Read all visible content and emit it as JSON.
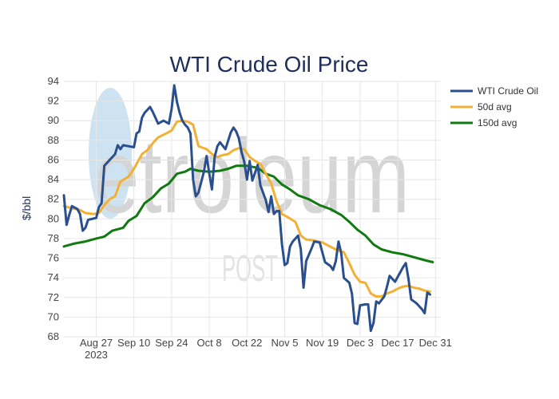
{
  "chart_data": {
    "type": "line",
    "title": "WTI Crude Oil Price",
    "ylabel": "$/bbl",
    "xlabel": "",
    "ylim": [
      68,
      94
    ],
    "yticks": [
      68,
      70,
      72,
      74,
      76,
      78,
      80,
      82,
      84,
      86,
      88,
      90,
      92,
      94
    ],
    "xlim": [
      "2023-08-15",
      "2024-01-02"
    ],
    "xticks": [
      {
        "date": "2023-08-27",
        "label": "Aug 27",
        "sublabel": "2023"
      },
      {
        "date": "2023-09-10",
        "label": "Sep 10",
        "sublabel": ""
      },
      {
        "date": "2023-09-24",
        "label": "Sep 24",
        "sublabel": ""
      },
      {
        "date": "2023-10-08",
        "label": "Oct 8",
        "sublabel": ""
      },
      {
        "date": "2023-10-22",
        "label": "Oct 22",
        "sublabel": ""
      },
      {
        "date": "2023-11-05",
        "label": "Nov 5",
        "sublabel": ""
      },
      {
        "date": "2023-11-19",
        "label": "Nov 19",
        "sublabel": ""
      },
      {
        "date": "2023-12-03",
        "label": "Dec 3",
        "sublabel": ""
      },
      {
        "date": "2023-12-17",
        "label": "Dec 17",
        "sublabel": ""
      },
      {
        "date": "2023-12-31",
        "label": "Dec 31",
        "sublabel": ""
      }
    ],
    "grid": true,
    "legend_position": "top-right",
    "series": [
      {
        "name": "WTI Crude Oil",
        "color": "#2a4f8f",
        "points": [
          [
            "2023-08-15",
            82.4
          ],
          [
            "2023-08-16",
            79.4
          ],
          [
            "2023-08-17",
            80.4
          ],
          [
            "2023-08-18",
            81.3
          ],
          [
            "2023-08-20",
            81.0
          ],
          [
            "2023-08-21",
            80.5
          ],
          [
            "2023-08-22",
            78.8
          ],
          [
            "2023-08-23",
            79.1
          ],
          [
            "2023-08-24",
            79.9
          ],
          [
            "2023-08-27",
            80.1
          ],
          [
            "2023-08-28",
            81.2
          ],
          [
            "2023-08-29",
            81.6
          ],
          [
            "2023-08-30",
            85.4
          ],
          [
            "2023-09-01",
            86.0
          ],
          [
            "2023-09-03",
            86.6
          ],
          [
            "2023-09-04",
            87.5
          ],
          [
            "2023-09-05",
            87.1
          ],
          [
            "2023-09-06",
            87.5
          ],
          [
            "2023-09-08",
            87.4
          ],
          [
            "2023-09-10",
            87.3
          ],
          [
            "2023-09-11",
            88.7
          ],
          [
            "2023-09-12",
            88.9
          ],
          [
            "2023-09-13",
            90.3
          ],
          [
            "2023-09-14",
            90.8
          ],
          [
            "2023-09-16",
            91.4
          ],
          [
            "2023-09-17",
            90.9
          ],
          [
            "2023-09-19",
            89.7
          ],
          [
            "2023-09-21",
            90.0
          ],
          [
            "2023-09-23",
            89.7
          ],
          [
            "2023-09-24",
            91.2
          ],
          [
            "2023-09-25",
            93.6
          ],
          [
            "2023-09-26",
            91.9
          ],
          [
            "2023-09-27",
            90.8
          ],
          [
            "2023-09-28",
            90.0
          ],
          [
            "2023-09-29",
            89.6
          ],
          [
            "2023-09-30",
            89.3
          ],
          [
            "2023-10-01",
            88.7
          ],
          [
            "2023-10-02",
            84.0
          ],
          [
            "2023-10-03",
            82.3
          ],
          [
            "2023-10-04",
            82.7
          ],
          [
            "2023-10-06",
            84.8
          ],
          [
            "2023-10-07",
            86.4
          ],
          [
            "2023-10-08",
            84.6
          ],
          [
            "2023-10-09",
            83.0
          ],
          [
            "2023-10-10",
            86.3
          ],
          [
            "2023-10-11",
            87.4
          ],
          [
            "2023-10-12",
            87.8
          ],
          [
            "2023-10-14",
            87.1
          ],
          [
            "2023-10-16",
            88.8
          ],
          [
            "2023-10-17",
            89.3
          ],
          [
            "2023-10-18",
            88.9
          ],
          [
            "2023-10-19",
            88.2
          ],
          [
            "2023-10-20",
            86.8
          ],
          [
            "2023-10-21",
            85.8
          ],
          [
            "2023-10-22",
            84.0
          ],
          [
            "2023-10-23",
            85.9
          ],
          [
            "2023-10-24",
            83.9
          ],
          [
            "2023-10-26",
            85.5
          ],
          [
            "2023-10-27",
            83.4
          ],
          [
            "2023-10-29",
            81.9
          ],
          [
            "2023-10-30",
            80.7
          ],
          [
            "2023-10-31",
            82.3
          ],
          [
            "2023-11-01",
            80.5
          ],
          [
            "2023-11-02",
            80.8
          ],
          [
            "2023-11-03",
            80.8
          ],
          [
            "2023-11-04",
            77.4
          ],
          [
            "2023-11-05",
            75.3
          ],
          [
            "2023-11-06",
            75.5
          ],
          [
            "2023-11-07",
            77.2
          ],
          [
            "2023-11-08",
            77.7
          ],
          [
            "2023-11-10",
            78.3
          ],
          [
            "2023-11-11",
            76.9
          ],
          [
            "2023-11-12",
            73.0
          ],
          [
            "2023-11-13",
            75.7
          ],
          [
            "2023-11-15",
            77.0
          ],
          [
            "2023-11-16",
            77.7
          ],
          [
            "2023-11-18",
            77.6
          ],
          [
            "2023-11-20",
            75.6
          ],
          [
            "2023-11-22",
            75.2
          ],
          [
            "2023-11-23",
            74.8
          ],
          [
            "2023-11-24",
            75.7
          ],
          [
            "2023-11-25",
            77.7
          ],
          [
            "2023-11-26",
            76.5
          ],
          [
            "2023-11-27",
            74.0
          ],
          [
            "2023-11-29",
            73.5
          ],
          [
            "2023-11-30",
            72.4
          ],
          [
            "2023-12-01",
            69.4
          ],
          [
            "2023-12-02",
            69.3
          ],
          [
            "2023-12-03",
            71.2
          ],
          [
            "2023-12-05",
            71.3
          ],
          [
            "2023-12-06",
            71.3
          ],
          [
            "2023-12-07",
            68.6
          ],
          [
            "2023-12-08",
            69.4
          ],
          [
            "2023-12-09",
            71.6
          ],
          [
            "2023-12-10",
            71.4
          ],
          [
            "2023-12-12",
            72.1
          ],
          [
            "2023-12-13",
            73.1
          ],
          [
            "2023-12-14",
            74.2
          ],
          [
            "2023-12-16",
            73.6
          ],
          [
            "2023-12-17",
            74.1
          ],
          [
            "2023-12-19",
            75.1
          ],
          [
            "2023-12-20",
            75.5
          ],
          [
            "2023-12-21",
            73.9
          ],
          [
            "2023-12-22",
            71.8
          ],
          [
            "2023-12-23",
            71.6
          ],
          [
            "2023-12-24",
            71.4
          ],
          [
            "2023-12-26",
            70.8
          ],
          [
            "2023-12-27",
            70.4
          ],
          [
            "2023-12-28",
            72.5
          ],
          [
            "2023-12-29",
            72.3
          ]
        ]
      },
      {
        "name": "50d avg",
        "color": "#f2b134",
        "points": [
          [
            "2023-08-15",
            81.3
          ],
          [
            "2023-08-18",
            81.1
          ],
          [
            "2023-08-21",
            80.9
          ],
          [
            "2023-08-23",
            80.6
          ],
          [
            "2023-08-26",
            80.5
          ],
          [
            "2023-08-28",
            80.6
          ],
          [
            "2023-08-30",
            81.4
          ],
          [
            "2023-09-01",
            82.0
          ],
          [
            "2023-09-03",
            82.3
          ],
          [
            "2023-09-05",
            83.8
          ],
          [
            "2023-09-08",
            84.3
          ],
          [
            "2023-09-10",
            85.1
          ],
          [
            "2023-09-13",
            86.6
          ],
          [
            "2023-09-15",
            87.0
          ],
          [
            "2023-09-17",
            87.7
          ],
          [
            "2023-09-19",
            88.3
          ],
          [
            "2023-09-22",
            88.7
          ],
          [
            "2023-09-24",
            89.0
          ],
          [
            "2023-09-26",
            89.9
          ],
          [
            "2023-09-28",
            90.0
          ],
          [
            "2023-09-30",
            89.9
          ],
          [
            "2023-10-02",
            89.6
          ],
          [
            "2023-10-04",
            87.4
          ],
          [
            "2023-10-07",
            87.1
          ],
          [
            "2023-10-09",
            86.6
          ],
          [
            "2023-10-11",
            86.3
          ],
          [
            "2023-10-13",
            86.5
          ],
          [
            "2023-10-15",
            86.6
          ],
          [
            "2023-10-17",
            87.0
          ],
          [
            "2023-10-19",
            87.2
          ],
          [
            "2023-10-21",
            87.1
          ],
          [
            "2023-10-23",
            86.3
          ],
          [
            "2023-10-25",
            85.9
          ],
          [
            "2023-10-27",
            85.6
          ],
          [
            "2023-10-29",
            84.6
          ],
          [
            "2023-10-31",
            83.6
          ],
          [
            "2023-11-02",
            81.8
          ],
          [
            "2023-11-04",
            80.5
          ],
          [
            "2023-11-06",
            80.2
          ],
          [
            "2023-11-09",
            79.7
          ],
          [
            "2023-11-11",
            78.3
          ],
          [
            "2023-11-13",
            77.9
          ],
          [
            "2023-11-16",
            77.8
          ],
          [
            "2023-11-19",
            77.6
          ],
          [
            "2023-11-21",
            77.3
          ],
          [
            "2023-11-24",
            76.9
          ],
          [
            "2023-11-27",
            76.6
          ],
          [
            "2023-11-29",
            75.5
          ],
          [
            "2023-12-01",
            74.3
          ],
          [
            "2023-12-03",
            73.6
          ],
          [
            "2023-12-05",
            73.5
          ],
          [
            "2023-12-07",
            72.4
          ],
          [
            "2023-12-09",
            72.1
          ],
          [
            "2023-12-11",
            72.1
          ],
          [
            "2023-12-13",
            72.4
          ],
          [
            "2023-12-15",
            72.6
          ],
          [
            "2023-12-17",
            72.9
          ],
          [
            "2023-12-19",
            73.1
          ],
          [
            "2023-12-21",
            73.2
          ],
          [
            "2023-12-23",
            73.0
          ],
          [
            "2023-12-25",
            72.9
          ],
          [
            "2023-12-27",
            72.7
          ],
          [
            "2023-12-29",
            72.6
          ]
        ]
      },
      {
        "name": "150d avg",
        "color": "#107a10",
        "points": [
          [
            "2023-08-15",
            77.2
          ],
          [
            "2023-08-19",
            77.5
          ],
          [
            "2023-08-23",
            77.7
          ],
          [
            "2023-08-27",
            78.0
          ],
          [
            "2023-08-30",
            78.2
          ],
          [
            "2023-09-02",
            78.8
          ],
          [
            "2023-09-06",
            79.1
          ],
          [
            "2023-09-08",
            79.8
          ],
          [
            "2023-09-11",
            80.3
          ],
          [
            "2023-09-14",
            81.6
          ],
          [
            "2023-09-17",
            82.2
          ],
          [
            "2023-09-20",
            83.1
          ],
          [
            "2023-09-23",
            83.6
          ],
          [
            "2023-09-26",
            84.6
          ],
          [
            "2023-09-29",
            84.8
          ],
          [
            "2023-10-01",
            85.1
          ],
          [
            "2023-10-04",
            84.9
          ],
          [
            "2023-10-08",
            84.8
          ],
          [
            "2023-10-12",
            84.9
          ],
          [
            "2023-10-15",
            85.1
          ],
          [
            "2023-10-18",
            85.4
          ],
          [
            "2023-10-22",
            85.4
          ],
          [
            "2023-10-26",
            85.2
          ],
          [
            "2023-10-29",
            84.6
          ],
          [
            "2023-11-01",
            84.3
          ],
          [
            "2023-11-04",
            83.5
          ],
          [
            "2023-11-07",
            83.0
          ],
          [
            "2023-11-10",
            82.4
          ],
          [
            "2023-11-14",
            82.0
          ],
          [
            "2023-11-18",
            81.4
          ],
          [
            "2023-11-22",
            81.0
          ],
          [
            "2023-11-26",
            80.4
          ],
          [
            "2023-11-29",
            79.7
          ],
          [
            "2023-12-02",
            78.9
          ],
          [
            "2023-12-05",
            78.3
          ],
          [
            "2023-12-08",
            77.4
          ],
          [
            "2023-12-11",
            76.9
          ],
          [
            "2023-12-15",
            76.6
          ],
          [
            "2023-12-19",
            76.4
          ],
          [
            "2023-12-23",
            76.1
          ],
          [
            "2023-12-27",
            75.8
          ],
          [
            "2023-12-30",
            75.6
          ]
        ]
      }
    ]
  }
}
